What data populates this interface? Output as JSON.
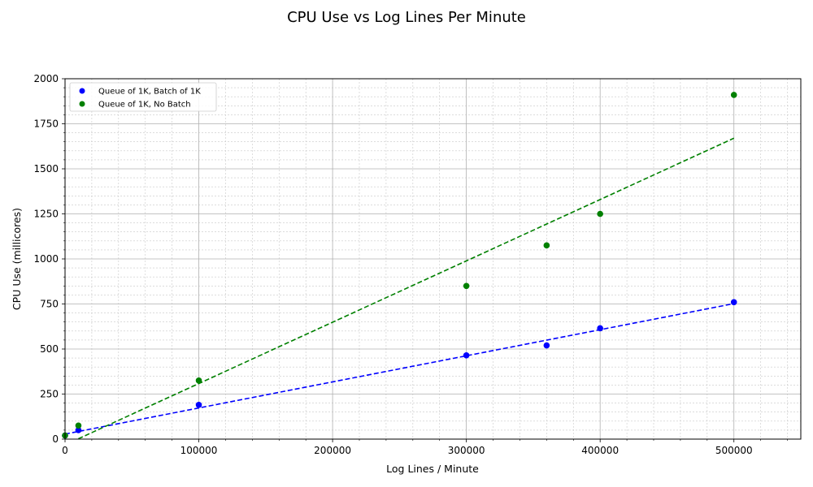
{
  "chart_data": {
    "type": "scatter",
    "title": "CPU Use vs Log Lines Per Minute",
    "xlabel": "Log Lines / Minute",
    "ylabel": "CPU Use (millicores)",
    "xlim": [
      0,
      550000
    ],
    "ylim": [
      0,
      2000
    ],
    "x_ticks": [
      0,
      100000,
      200000,
      300000,
      400000,
      500000
    ],
    "x_tick_labels": [
      "0",
      "100000",
      "200000",
      "300000",
      "400000",
      "500000"
    ],
    "y_ticks": [
      0,
      250,
      500,
      750,
      1000,
      1250,
      1500,
      1750,
      2000
    ],
    "y_tick_labels": [
      "0",
      "250",
      "500",
      "750",
      "1000",
      "1250",
      "1500",
      "1750",
      "2000"
    ],
    "grid": true,
    "minor_grid": true,
    "legend_position": "top-left",
    "series": [
      {
        "name": "Queue of 1K, Batch of 1K",
        "color": "#0000ff",
        "x": [
          0,
          10000,
          100000,
          300000,
          360000,
          400000,
          500000
        ],
        "y": [
          20,
          50,
          190,
          465,
          520,
          615,
          760
        ],
        "trend": {
          "x": [
            0,
            500000
          ],
          "y": [
            28,
            752
          ]
        }
      },
      {
        "name": "Queue of 1K, No Batch",
        "color": "#008000",
        "x": [
          0,
          10000,
          100000,
          300000,
          360000,
          400000,
          500000
        ],
        "y": [
          20,
          75,
          325,
          850,
          1075,
          1250,
          1910
        ],
        "trend": {
          "x": [
            0,
            500000
          ],
          "y": [
            -32,
            1670
          ]
        }
      }
    ]
  }
}
